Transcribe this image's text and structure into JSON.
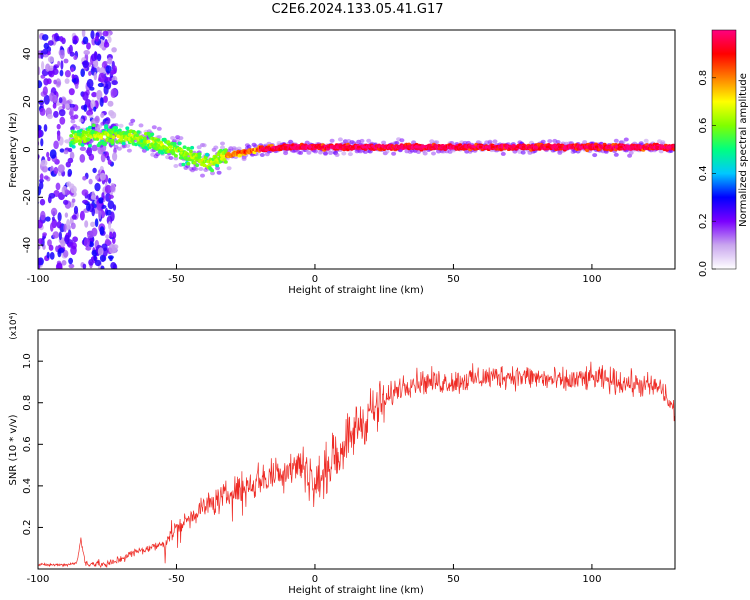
{
  "title": "C2E6.2024.133.05.41.G17",
  "chart_data": [
    {
      "type": "heatmap",
      "xlabel": "Height of straight line (km)",
      "ylabel": "Frequency (Hz)",
      "xlim": [
        -100,
        130
      ],
      "ylim": [
        -50,
        50
      ],
      "xticks": [
        -100,
        -50,
        0,
        50,
        100
      ],
      "yticks": [
        -40,
        -20,
        0,
        20,
        40
      ],
      "colorbar": {
        "label": "Normalized spectral amplitude",
        "range": [
          0,
          1
        ],
        "ticks": [
          "0.0",
          "0.2",
          "0.4",
          "0.6",
          "0.8"
        ],
        "colors": [
          "#ffffff",
          "#c9a6ee",
          "#7a00ff",
          "#0000ff",
          "#00c8ff",
          "#00ff80",
          "#80ff00",
          "#ffff00",
          "#ff8000",
          "#ff0000",
          "#ff0080"
        ]
      },
      "ridge": {
        "description_points_x": [
          -85,
          -75,
          -65,
          -55,
          -45,
          -38,
          -34,
          -30,
          -25,
          -20,
          -10,
          0,
          20,
          50,
          80,
          100,
          130
        ],
        "frequency_hz": [
          5,
          6,
          5,
          2,
          -3,
          -6,
          -3,
          -2,
          -1,
          0,
          1,
          1,
          1,
          1,
          1,
          1,
          1
        ]
      },
      "strong_vertical_bands_x": [
        [
          -102,
          -86
        ],
        [
          -84,
          -72
        ]
      ]
    },
    {
      "type": "line",
      "xlabel": "Height of straight line (km)",
      "ylabel": "SNR (10 * v/v)",
      "ylabel_exponent": "(x10⁴)",
      "xlim": [
        -100,
        130
      ],
      "ylim": [
        0,
        1.15
      ],
      "xticks": [
        -100,
        -50,
        0,
        50,
        100
      ],
      "yticks": [
        "0.2",
        "0.4",
        "0.6",
        "0.8",
        "1.0"
      ],
      "series": [
        {
          "color": "#ee2a24",
          "x": [
            -100,
            -90,
            -86,
            -84.5,
            -83,
            -75,
            -70,
            -65,
            -60,
            -55,
            -50,
            -45,
            -40,
            -35,
            -30,
            -25,
            -20,
            -15,
            -10,
            -5,
            0,
            5,
            10,
            15,
            20,
            25,
            30,
            35,
            40,
            50,
            60,
            70,
            80,
            90,
            100,
            110,
            120,
            125,
            130
          ],
          "values": [
            0.02,
            0.02,
            0.03,
            0.14,
            0.03,
            0.02,
            0.05,
            0.08,
            0.1,
            0.12,
            0.2,
            0.25,
            0.3,
            0.33,
            0.37,
            0.4,
            0.43,
            0.45,
            0.48,
            0.52,
            0.4,
            0.5,
            0.6,
            0.68,
            0.75,
            0.8,
            0.87,
            0.9,
            0.9,
            0.9,
            0.92,
            0.93,
            0.92,
            0.9,
            0.92,
            0.9,
            0.88,
            0.87,
            0.75
          ]
        }
      ]
    }
  ]
}
